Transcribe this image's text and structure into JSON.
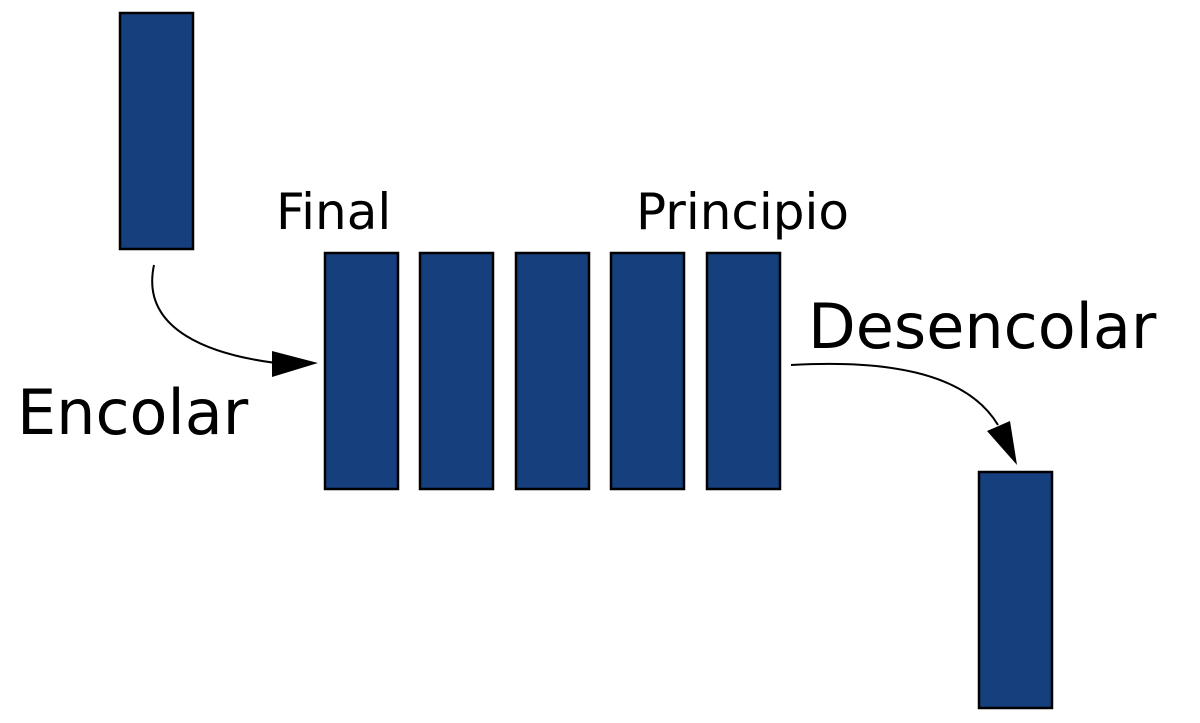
{
  "diagram": {
    "labels": {
      "final": "Final",
      "principio": "Principio",
      "encolar": "Encolar",
      "desencolar": "Desencolar"
    },
    "queue_size": 5,
    "colors": {
      "block_fill": "#163f7e",
      "outline": "#000000"
    }
  }
}
